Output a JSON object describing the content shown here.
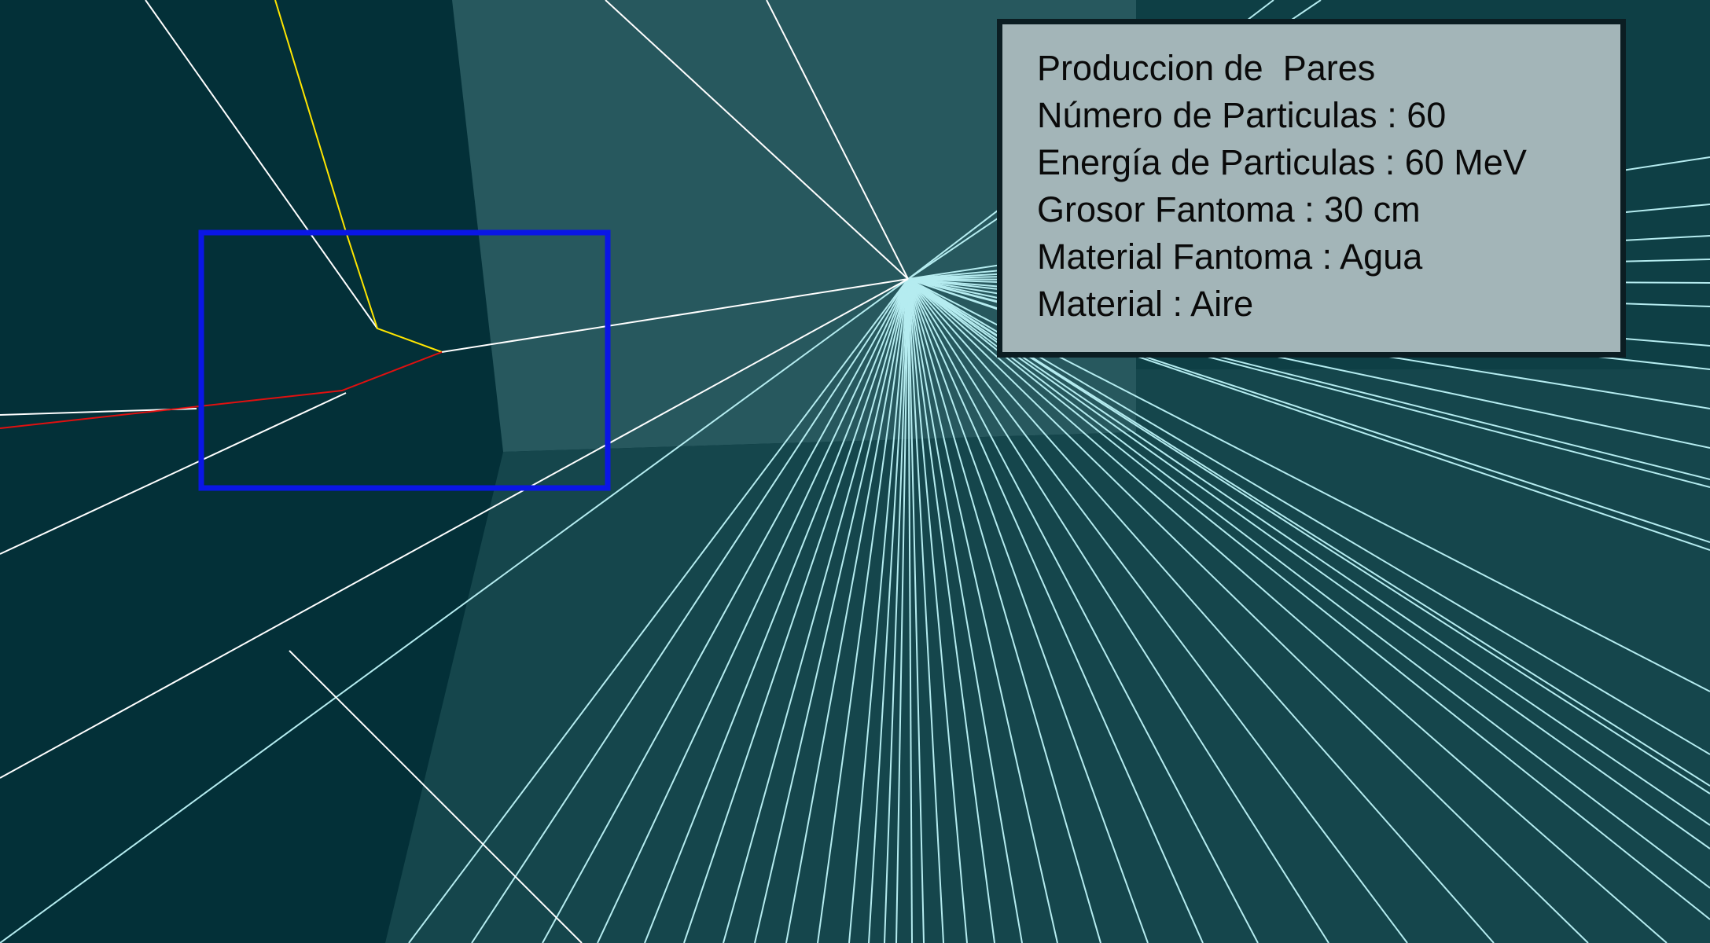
{
  "info_panel": {
    "lines": [
      "Produccion de  Pares",
      "Número de Particulas : 60",
      "Energía de Particulas : 60 MeV",
      "Grosor Fantoma : 30 cm",
      "Material Fantoma : Agua",
      "Material : Aire"
    ]
  },
  "colors": {
    "background": "#033038",
    "phantom_face": "#27585e",
    "phantom_lower": "#15464c",
    "gamma_track": "#b5ecf0",
    "white_track": "#ffffff",
    "electron_track": "#ffe600",
    "positron_track": "#e01010",
    "detector_box": "#0a16e6",
    "panel_background": "#a3b5b8",
    "panel_border": "#0b1d22"
  }
}
